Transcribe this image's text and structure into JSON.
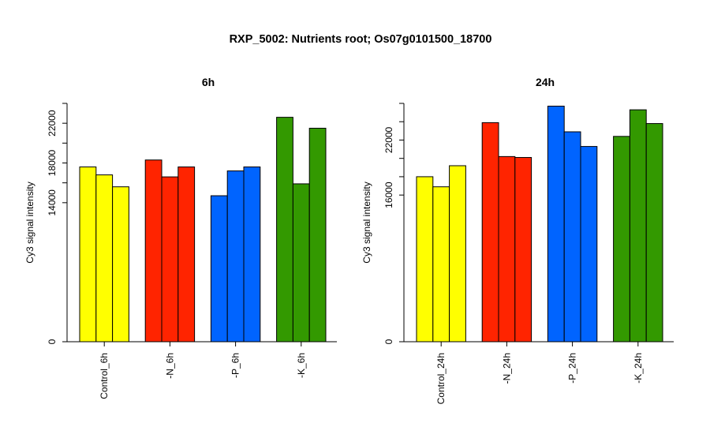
{
  "title": "RXP_5002: Nutrients root; Os07g0101500_18700",
  "colors": {
    "control": "#ffff00",
    "n": "#ff2400",
    "p": "#0064ff",
    "k": "#339900"
  },
  "chart_data": [
    {
      "type": "bar",
      "title": "6h",
      "ylabel": "Cy3 signal intensity",
      "ylim": [
        0,
        24000
      ],
      "yticks": [
        0,
        14000,
        18000,
        22000
      ],
      "ytick_labels": [
        "0",
        "14000",
        "18000",
        "22000"
      ],
      "groups": [
        {
          "label": "Control_6h",
          "color_key": "control",
          "values": [
            17600,
            16800,
            15600
          ]
        },
        {
          "label": "-N_6h",
          "color_key": "n",
          "values": [
            18300,
            16600,
            17600
          ]
        },
        {
          "label": "-P_6h",
          "color_key": "p",
          "values": [
            14700,
            17200,
            17600
          ]
        },
        {
          "label": "-K_6h",
          "color_key": "k",
          "values": [
            22600,
            15900,
            21500
          ]
        }
      ]
    },
    {
      "type": "bar",
      "title": "24h",
      "ylabel": "Cy3 signal intensity",
      "ylim": [
        0,
        26000
      ],
      "yticks": [
        0,
        16000,
        22000
      ],
      "ytick_labels": [
        "0",
        "16000",
        "22000"
      ],
      "groups": [
        {
          "label": "Control_24h",
          "color_key": "control",
          "values": [
            18000,
            16900,
            19200
          ]
        },
        {
          "label": "-N_24h",
          "color_key": "n",
          "values": [
            23900,
            20200,
            20100
          ]
        },
        {
          "label": "-P_24h",
          "color_key": "p",
          "values": [
            25700,
            22900,
            21300
          ]
        },
        {
          "label": "-K_24h",
          "color_key": "k",
          "values": [
            22400,
            25300,
            23800
          ]
        }
      ]
    }
  ]
}
